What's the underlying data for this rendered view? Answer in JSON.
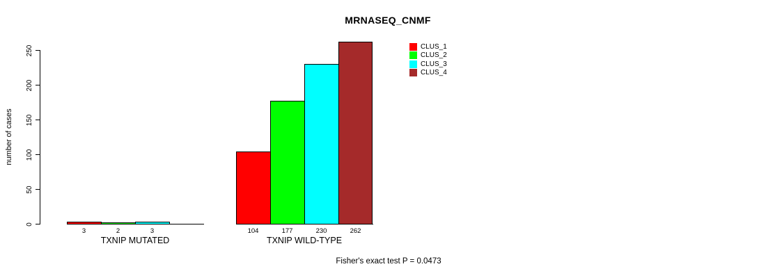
{
  "chart_data": {
    "type": "bar",
    "title": "MRNASEQ_CNMF",
    "ylabel": "number of cases",
    "xlabel": "",
    "ylim": [
      0,
      250
    ],
    "yticks": [
      0,
      50,
      100,
      150,
      200,
      250
    ],
    "grid": false,
    "legend_position": "top-right",
    "categories": [
      "TXNIP MUTATED",
      "TXNIP WILD-TYPE"
    ],
    "series": [
      {
        "name": "CLUS_1",
        "color": "#ff0000",
        "values": [
          3,
          104
        ]
      },
      {
        "name": "CLUS_2",
        "color": "#00ff00",
        "values": [
          2,
          177
        ]
      },
      {
        "name": "CLUS_3",
        "color": "#00ffff",
        "values": [
          3,
          230
        ]
      },
      {
        "name": "CLUS_4",
        "color": "#a52a2a",
        "values": [
          0,
          262
        ]
      }
    ],
    "bar_value_labels": {
      "TXNIP MUTATED": [
        "3",
        "2",
        "3",
        ""
      ],
      "TXNIP WILD-TYPE": [
        "104",
        "177",
        "230",
        "262"
      ]
    },
    "annotation": "Fisher's exact test P = 0.0473"
  }
}
